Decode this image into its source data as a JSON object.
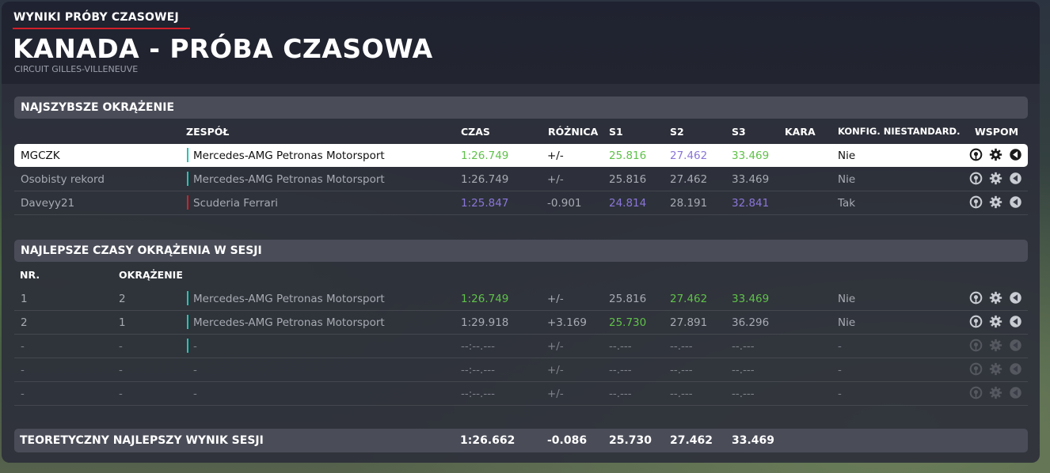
{
  "header": {
    "subtitle": "WYNIKI PRÓBY CZASOWEJ",
    "title": "KANADA - PRÓBA CZASOWA",
    "circuit": "CIRCUIT GILLES-VILLENEUVE"
  },
  "colors": {
    "accent_red": "#d2202a",
    "personal_best_green": "#5fc24a",
    "overall_best_purple": "#8a76d8",
    "mercedes_teal": "#1fc7b6",
    "ferrari_red": "#d2202a"
  },
  "fastest_lap": {
    "title": "NAJSZYBSZE OKRĄŻENIE",
    "columns": {
      "team": "ZESPÓŁ",
      "time": "CZAS",
      "diff": "RÓŻNICA",
      "s1": "S1",
      "s2": "S2",
      "s3": "S3",
      "penalty": "KARA",
      "config": "KONFIG. NIESTANDARD.",
      "assist": "WSPOM"
    },
    "rows": [
      {
        "name": "MGCZK",
        "team": "Mercedes-AMG Petronas Motorsport",
        "team_color": "#1fc7b6",
        "time": "1:26.749",
        "time_class": "green",
        "diff": "+/-",
        "s1": "25.816",
        "s1_class": "green",
        "s2": "27.462",
        "s2_class": "purple",
        "s3": "33.469",
        "s3_class": "green",
        "penalty": "",
        "config": "Nie",
        "highlight": true
      },
      {
        "name": "Osobisty rekord",
        "team": "Mercedes-AMG Petronas Motorsport",
        "team_color": "#1fc7b6",
        "time": "1:26.749",
        "time_class": "",
        "diff": "+/-",
        "s1": "25.816",
        "s1_class": "",
        "s2": "27.462",
        "s2_class": "",
        "s3": "33.469",
        "s3_class": "",
        "penalty": "",
        "config": "Nie"
      },
      {
        "name": "Daveyy21",
        "team": "Scuderia Ferrari",
        "team_color": "#d2202a",
        "time": "1:25.847",
        "time_class": "purple",
        "diff": "-0.901",
        "s1": "24.814",
        "s1_class": "purple",
        "s2": "28.191",
        "s2_class": "",
        "s3": "32.841",
        "s3_class": "purple",
        "penalty": "",
        "config": "Tak"
      }
    ]
  },
  "session_laps": {
    "title": "NAJLEPSZE CZASY OKRĄŻENIA W SESJI",
    "columns": {
      "nr": "NR.",
      "lap": "OKRĄŻENIE"
    },
    "rows": [
      {
        "nr": "1",
        "lap": "2",
        "team": "Mercedes-AMG Petronas Motorsport",
        "team_color": "#1fc7b6",
        "time": "1:26.749",
        "time_class": "green",
        "diff": "+/-",
        "s1": "25.816",
        "s1_class": "",
        "s2": "27.462",
        "s2_class": "green",
        "s3": "33.469",
        "s3_class": "green",
        "config": "Nie"
      },
      {
        "nr": "2",
        "lap": "1",
        "team": "Mercedes-AMG Petronas Motorsport",
        "team_color": "#1fc7b6",
        "time": "1:29.918",
        "time_class": "",
        "diff": "+3.169",
        "s1": "25.730",
        "s1_class": "green",
        "s2": "27.891",
        "s2_class": "",
        "s3": "36.296",
        "s3_class": "",
        "config": "Nie"
      },
      {
        "nr": "-",
        "lap": "-",
        "team": "-",
        "team_color": "#1fc7b6",
        "time": "--:--.---",
        "time_class": "",
        "diff": "+/-",
        "s1": "--.---",
        "s1_class": "",
        "s2": "--.---",
        "s2_class": "",
        "s3": "--.---",
        "s3_class": "",
        "config": "-",
        "empty": true
      },
      {
        "nr": "-",
        "lap": "-",
        "team": "-",
        "team_color": "",
        "time": "--:--.---",
        "time_class": "",
        "diff": "+/-",
        "s1": "--.---",
        "s1_class": "",
        "s2": "--.---",
        "s2_class": "",
        "s3": "--.---",
        "s3_class": "",
        "config": "-",
        "empty": true
      },
      {
        "nr": "-",
        "lap": "-",
        "team": "-",
        "team_color": "",
        "time": "--:--.---",
        "time_class": "",
        "diff": "+/-",
        "s1": "--.---",
        "s1_class": "",
        "s2": "--.---",
        "s2_class": "",
        "s3": "--.---",
        "s3_class": "",
        "config": "-",
        "empty": true
      }
    ]
  },
  "theoretical": {
    "label": "TEORETYCZNY NAJLEPSZY WYNIK SESJI",
    "time": "1:26.662",
    "diff": "-0.086",
    "s1": "25.730",
    "s2": "27.462",
    "s3": "33.469"
  },
  "assist_icons": [
    "steering-wheel-icon",
    "gear-icon",
    "brake-icon"
  ]
}
